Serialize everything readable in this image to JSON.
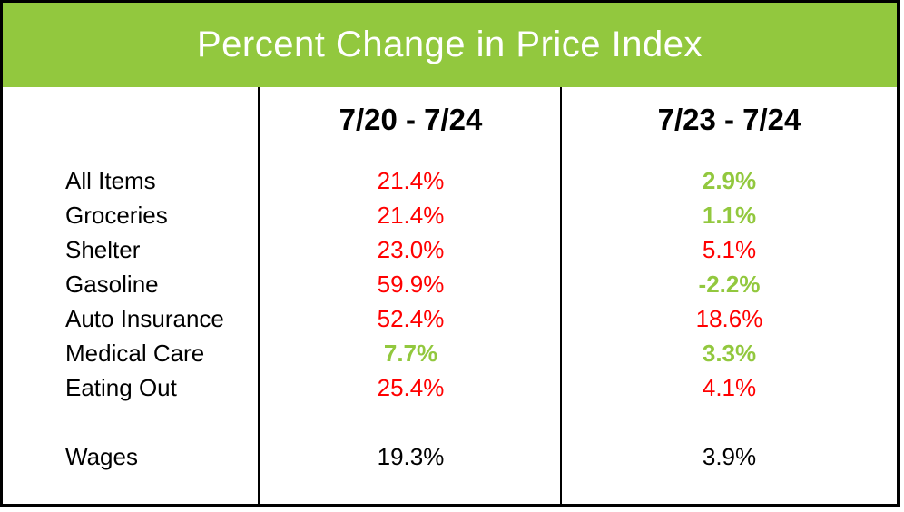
{
  "chart_data": {
    "type": "table",
    "title": "Percent Change in Price Index",
    "column_headers": [
      "7/20 - 7/24",
      "7/23 - 7/24"
    ],
    "rows": [
      {
        "label": "All Items",
        "values": [
          "21.4%",
          "2.9%"
        ],
        "tones": [
          "red",
          "green"
        ]
      },
      {
        "label": "Groceries",
        "values": [
          "21.4%",
          "1.1%"
        ],
        "tones": [
          "red",
          "green"
        ]
      },
      {
        "label": "Shelter",
        "values": [
          "23.0%",
          "5.1%"
        ],
        "tones": [
          "red",
          "red"
        ]
      },
      {
        "label": "Gasoline",
        "values": [
          "59.9%",
          "-2.2%"
        ],
        "tones": [
          "red",
          "green"
        ]
      },
      {
        "label": "Auto Insurance",
        "values": [
          "52.4%",
          "18.6%"
        ],
        "tones": [
          "red",
          "red"
        ]
      },
      {
        "label": "Medical Care",
        "values": [
          "7.7%",
          "3.3%"
        ],
        "tones": [
          "green",
          "green"
        ]
      },
      {
        "label": "Eating Out",
        "values": [
          "25.4%",
          "4.1%"
        ],
        "tones": [
          "red",
          "red"
        ]
      },
      {
        "label": "Wages",
        "values": [
          "19.3%",
          "3.9%"
        ],
        "tones": [
          "black",
          "black"
        ]
      }
    ],
    "tone_colors": {
      "red": "#ff0000",
      "green": "#92c83e",
      "black": "#000000"
    },
    "layout_hints": {
      "header_bg": "#92c83e",
      "title_color": "#ffffff",
      "border_color": "#000000",
      "grid": "two vertical dividers only",
      "wages_row_separated": true,
      "bold_tones": [
        "green"
      ]
    }
  }
}
